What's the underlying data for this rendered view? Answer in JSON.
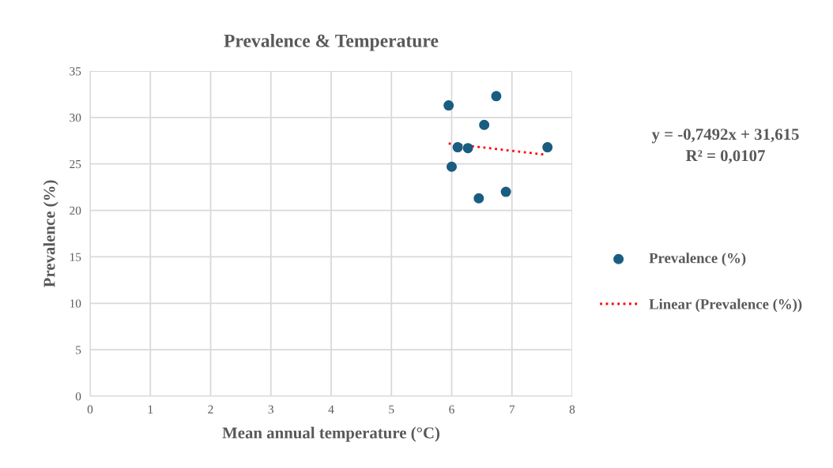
{
  "chart_data": {
    "type": "scatter",
    "title": "Prevalence & Temperature",
    "xlabel": "Mean annual temperature (°C)",
    "ylabel": "Prevalence (%)",
    "annotations": [
      "y = -0,7492x + 31,615",
      "R² = 0,0107"
    ],
    "series": [
      {
        "name": "Prevalence (%)",
        "color": "#1a5d80",
        "marker": "circle",
        "x": [
          5.95,
          6.74,
          6.54,
          6.1,
          6.27,
          7.59,
          6.0,
          6.45,
          6.9
        ],
        "values": [
          31.3,
          32.3,
          29.2,
          26.8,
          26.7,
          26.8,
          24.7,
          21.3,
          22.0
        ]
      },
      {
        "name": "Linear (Prevalence (%))",
        "type": "line",
        "color": "#ff0000",
        "line_style": "dotted",
        "marker": "none",
        "x": [
          5.95,
          7.55
        ],
        "values": [
          27.2,
          26.0
        ]
      }
    ],
    "xlim": [
      0,
      8
    ],
    "xticks": [
      0,
      1,
      2,
      3,
      4,
      5,
      6,
      7,
      8
    ],
    "ylim": [
      0,
      35
    ],
    "yticks": [
      0,
      5,
      10,
      15,
      20,
      25,
      30,
      35
    ],
    "grid": true,
    "legend": "right"
  }
}
